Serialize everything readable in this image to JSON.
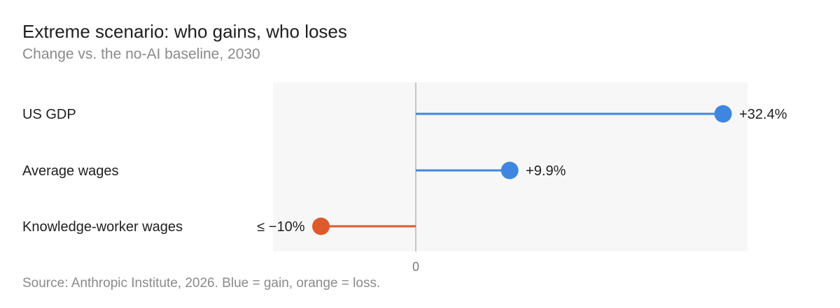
{
  "title": "Extreme scenario: who gains, who loses",
  "subtitle": "Change vs. the no-AI baseline, 2030",
  "source": "Source: Anthropic Institute, 2026. Blue = gain, orange = loss.",
  "colors": {
    "gain": "#3f86e0",
    "loss": "#dd5a2c",
    "plot_bg": "#f7f7f7",
    "axis": "#b5b5b5"
  },
  "chart_data": {
    "type": "lollipop",
    "categories": [
      "US GDP",
      "Average wages",
      "Knowledge-worker wages"
    ],
    "values": [
      32.4,
      9.9,
      -10
    ],
    "value_labels": [
      "+32.4%",
      "+9.9%",
      "≤ −10%"
    ],
    "direction": [
      "gain",
      "gain",
      "loss"
    ],
    "xlim": [
      -15,
      35
    ],
    "x_ticks": [
      0
    ],
    "x_tick_labels": [
      "0"
    ],
    "grid": false
  }
}
